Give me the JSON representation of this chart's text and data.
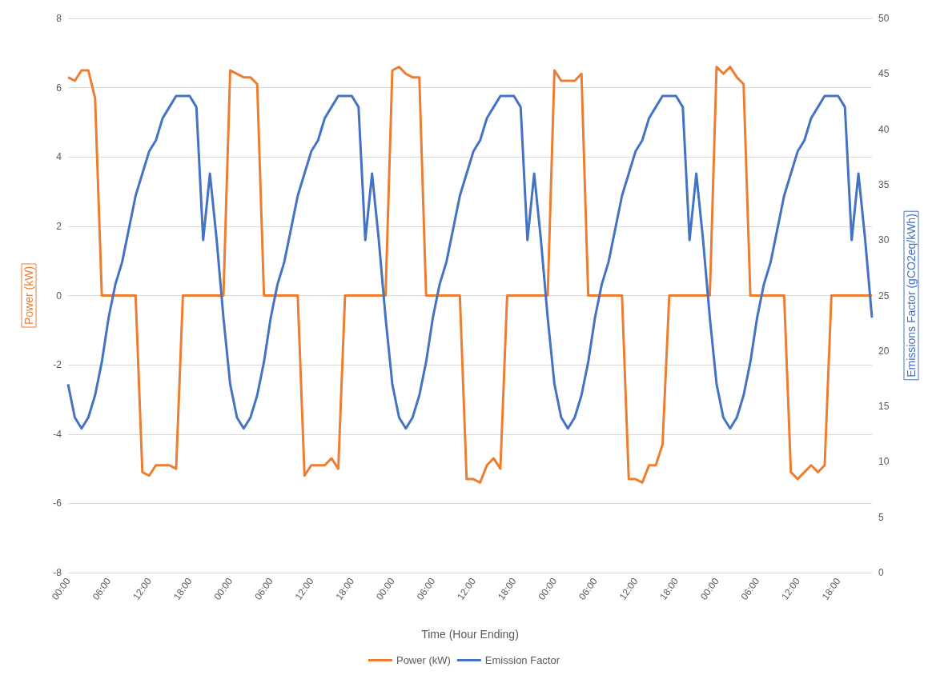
{
  "chart_data": {
    "type": "line",
    "xlabel": "Time (Hour Ending)",
    "ylabel": "Power (kW)",
    "y2label": "Emissions Factor (gCO2eq/kWh)",
    "categories": [
      "00:00",
      null,
      null,
      null,
      null,
      null,
      "06:00",
      null,
      null,
      null,
      null,
      null,
      "12:00",
      null,
      null,
      null,
      null,
      null,
      "18:00",
      null,
      null,
      null,
      null,
      null,
      "00:00",
      null,
      null,
      null,
      null,
      null,
      "06:00",
      null,
      null,
      null,
      null,
      null,
      "12:00",
      null,
      null,
      null,
      null,
      null,
      "18:00",
      null,
      null,
      null,
      null,
      null,
      "00:00",
      null,
      null,
      null,
      null,
      null,
      "06:00",
      null,
      null,
      null,
      null,
      null,
      "12:00",
      null,
      null,
      null,
      null,
      null,
      "18:00",
      null,
      null,
      null,
      null,
      null,
      "00:00",
      null,
      null,
      null,
      null,
      null,
      "06:00",
      null,
      null,
      null,
      null,
      null,
      "12:00",
      null,
      null,
      null,
      null,
      null,
      "18:00",
      null,
      null,
      null,
      null,
      null,
      "00:00",
      null,
      null,
      null,
      null,
      null,
      "06:00",
      null,
      null,
      null,
      null,
      null,
      "12:00",
      null,
      null,
      null,
      null,
      null,
      "18:00",
      null,
      null,
      null,
      null,
      null
    ],
    "series": [
      {
        "name": "Power (kW)",
        "color": "#ed7d31",
        "values": [
          6.3,
          6.2,
          6.5,
          6.5,
          5.7,
          0,
          0,
          0,
          0,
          0,
          0,
          -5.1,
          -5.2,
          -4.9,
          -4.9,
          -4.9,
          -5.0,
          0,
          0,
          0,
          0,
          0,
          0,
          0,
          6.5,
          6.4,
          6.3,
          6.3,
          6.1,
          0,
          0,
          0,
          0,
          0,
          0,
          -5.2,
          -4.9,
          -4.9,
          -4.9,
          -4.7,
          -5.0,
          0,
          0,
          0,
          0,
          0,
          0,
          0,
          6.5,
          6.6,
          6.4,
          6.3,
          6.3,
          0,
          0,
          0,
          0,
          0,
          0,
          -5.3,
          -5.3,
          -5.4,
          -4.9,
          -4.7,
          -5.0,
          0,
          0,
          0,
          0,
          0,
          0,
          0,
          6.5,
          6.2,
          6.2,
          6.2,
          6.4,
          0,
          0,
          0,
          0,
          0,
          0,
          -5.3,
          -5.3,
          -5.4,
          -4.9,
          -4.9,
          -4.3,
          0,
          0,
          0,
          0,
          0,
          0,
          0,
          6.6,
          6.4,
          6.6,
          6.3,
          6.1,
          0,
          0,
          0,
          0,
          0,
          0,
          -5.1,
          -5.3,
          -5.1,
          -4.9,
          -5.1,
          -4.9,
          0,
          0,
          0,
          0,
          0,
          0,
          0
        ]
      },
      {
        "name": "Emission Factor",
        "color": "#4472c4",
        "axis": "y2",
        "values": [
          17,
          14,
          13,
          14,
          16,
          19,
          23,
          26,
          28,
          31,
          34,
          36,
          38,
          39,
          41,
          42,
          43,
          43,
          43,
          42,
          30,
          36,
          30,
          23,
          17,
          14,
          13,
          14,
          16,
          19,
          23,
          26,
          28,
          31,
          34,
          36,
          38,
          39,
          41,
          42,
          43,
          43,
          43,
          42,
          30,
          36,
          30,
          23,
          17,
          14,
          13,
          14,
          16,
          19,
          23,
          26,
          28,
          31,
          34,
          36,
          38,
          39,
          41,
          42,
          43,
          43,
          43,
          42,
          30,
          36,
          30,
          23,
          17,
          14,
          13,
          14,
          16,
          19,
          23,
          26,
          28,
          31,
          34,
          36,
          38,
          39,
          41,
          42,
          43,
          43,
          43,
          42,
          30,
          36,
          30,
          23,
          17,
          14,
          13,
          14,
          16,
          19,
          23,
          26,
          28,
          31,
          34,
          36,
          38,
          39,
          41,
          42,
          43,
          43,
          43,
          42,
          30,
          36,
          30,
          23
        ]
      }
    ],
    "ylim": [
      -8,
      8
    ],
    "yticks": [
      -8,
      -6,
      -4,
      -2,
      0,
      2,
      4,
      6,
      8
    ],
    "y2lim": [
      0,
      50
    ],
    "y2ticks": [
      0,
      5,
      10,
      15,
      20,
      25,
      30,
      35,
      40,
      45,
      50
    ],
    "grid": "y",
    "legend": "bottom",
    "marker": "none",
    "line_style": "solid"
  }
}
